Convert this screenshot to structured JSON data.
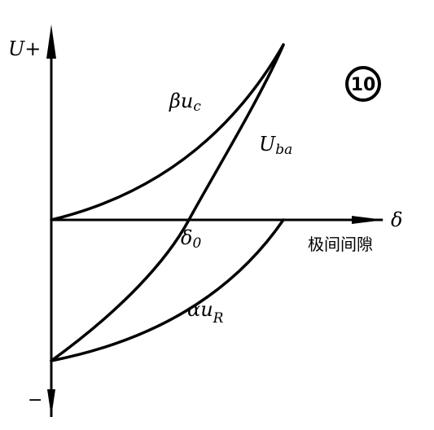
{
  "axes": {
    "y_positive": "U+",
    "y_negative": "−",
    "x": "δ",
    "x_caption": "极间间隙",
    "origin_point": {
      "main": "δ",
      "sub": "0"
    }
  },
  "badge": "10",
  "curves": [
    {
      "main": "βu",
      "sub": "c"
    },
    {
      "main": "U",
      "sub": "ba"
    },
    {
      "main": "αu",
      "sub": "R"
    }
  ]
}
